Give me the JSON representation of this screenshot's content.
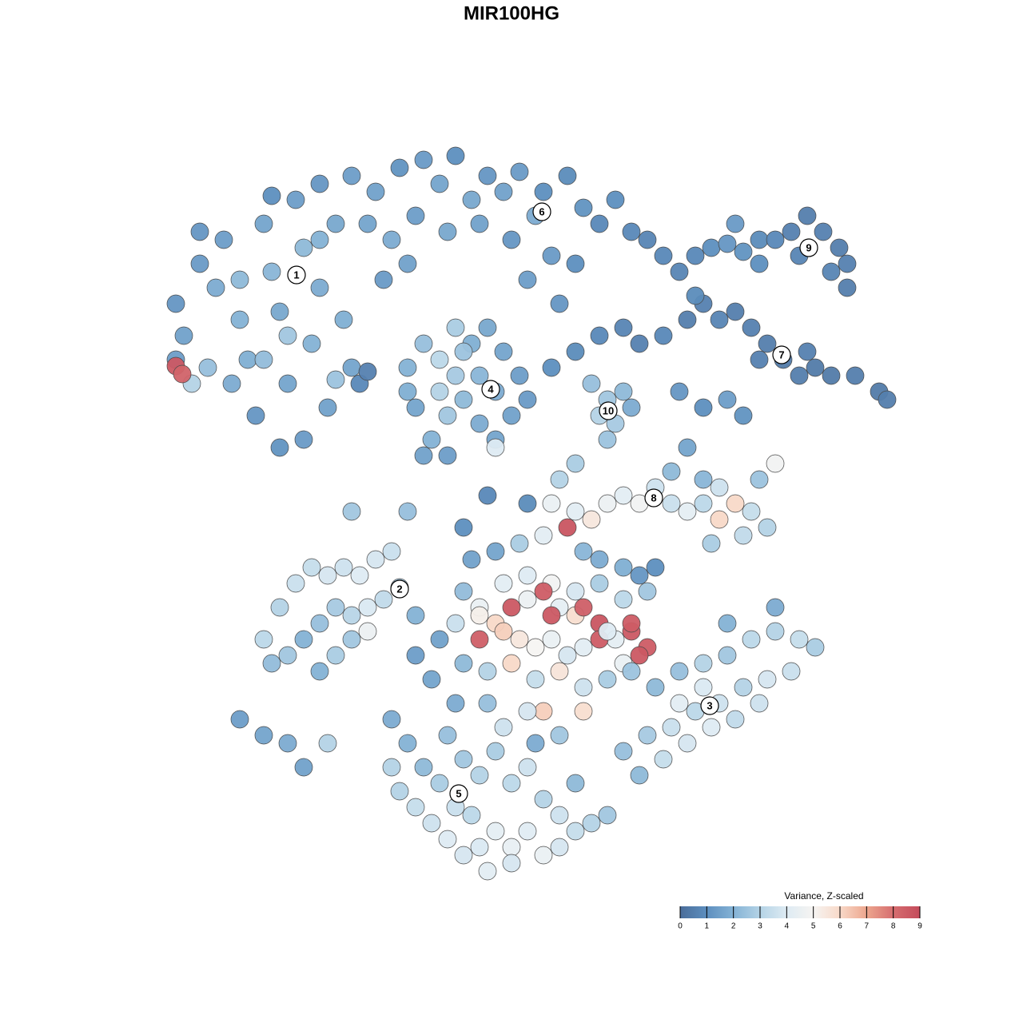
{
  "chart_data": {
    "type": "scatter",
    "title": "MIR100HG",
    "xlim": [
      0,
      128
    ],
    "ylim": [
      128,
      0
    ],
    "x": [
      22,
      23,
      25,
      27,
      28,
      30,
      31,
      33,
      34,
      35,
      36,
      37,
      38,
      39,
      40,
      41,
      42,
      43,
      44,
      32,
      35,
      38,
      29,
      26,
      33,
      22,
      25,
      36,
      40,
      30,
      24,
      22,
      22.8,
      34,
      40,
      44,
      47,
      50,
      53,
      55,
      57,
      59,
      61,
      63,
      65,
      67,
      68,
      71,
      73,
      75,
      77,
      79,
      81,
      83,
      85,
      46,
      49,
      52,
      56,
      60,
      64,
      69,
      72,
      48,
      51,
      66,
      70,
      87,
      89,
      91,
      93,
      95,
      97,
      99,
      101,
      103,
      105,
      106,
      106,
      104,
      92,
      95,
      100,
      69,
      72,
      75,
      78,
      80,
      83,
      86,
      88,
      90,
      92,
      94,
      96,
      98,
      100,
      102,
      104,
      107,
      110,
      111,
      101,
      87,
      95,
      85,
      88,
      91,
      93,
      51,
      53,
      55,
      57,
      59,
      61,
      63,
      65,
      66,
      64,
      62,
      60,
      58,
      56,
      54,
      52,
      51,
      55,
      57,
      60,
      62,
      58,
      53,
      56,
      62,
      74,
      76,
      78,
      75,
      77,
      76,
      79,
      69,
      72,
      74,
      76,
      78,
      80,
      82,
      84,
      86,
      88,
      90,
      92,
      94,
      96,
      90,
      93,
      89,
      95,
      97,
      84,
      86,
      88,
      59,
      62,
      65,
      68,
      71,
      73,
      75,
      78,
      80,
      82,
      58,
      60,
      63,
      66,
      69,
      72,
      75,
      78,
      81,
      57,
      60,
      62,
      64,
      66,
      68,
      70,
      72,
      73,
      75,
      77,
      79,
      81,
      78,
      60,
      63,
      65,
      67,
      69,
      71,
      73,
      75,
      76,
      58,
      61,
      64,
      67,
      70,
      73,
      68,
      73,
      66,
      57,
      61,
      63,
      70,
      54,
      55,
      52,
      76,
      80,
      79,
      69,
      33,
      35,
      37,
      39,
      41,
      43,
      45,
      47,
      49,
      50,
      48,
      46,
      44,
      42,
      40,
      38,
      36,
      34,
      40,
      42,
      44,
      52,
      46,
      30,
      33,
      36,
      38,
      41,
      79,
      82,
      85,
      88,
      91,
      94,
      97,
      100,
      102,
      99,
      96,
      93,
      90,
      87,
      84,
      81,
      78,
      80,
      83,
      86,
      89,
      92,
      95,
      91,
      97,
      88,
      85,
      49,
      51,
      53,
      56,
      58,
      60,
      62,
      64,
      66,
      68,
      70,
      72,
      74,
      76,
      50,
      52,
      54,
      56,
      58,
      60,
      62,
      64,
      66,
      68,
      70,
      61,
      64,
      57,
      59,
      49,
      55,
      67,
      72,
      44,
      51,
      58,
      61,
      66,
      70,
      72,
      45,
      46,
      42
    ],
    "y": [
      38,
      42,
      33,
      36,
      30,
      40,
      45,
      28,
      34,
      39,
      48,
      25,
      31,
      43,
      36,
      51,
      28,
      40,
      46,
      52,
      56,
      55,
      48,
      46,
      45,
      45,
      29,
      42,
      30,
      35,
      48,
      45.8,
      46.8,
      24.5,
      23,
      22,
      24,
      21,
      20,
      23,
      19.5,
      25,
      22,
      24,
      21.5,
      27,
      24,
      22,
      26,
      28,
      25,
      29,
      30,
      32,
      34,
      28,
      30,
      27,
      29,
      28,
      30,
      32,
      33,
      35,
      33,
      35,
      38,
      32,
      31,
      30.5,
      31.5,
      30,
      30,
      29,
      27,
      29,
      31,
      33,
      36,
      34,
      28,
      33,
      32,
      46,
      44,
      42,
      41,
      43,
      42,
      40,
      38,
      40,
      39,
      41,
      43,
      45,
      47,
      46,
      47,
      47,
      49,
      50,
      44,
      37,
      45,
      49,
      51,
      50,
      52,
      46,
      43,
      45,
      41,
      43,
      41,
      44,
      47,
      50,
      52,
      55,
      53,
      50,
      52,
      55,
      51,
      49,
      49,
      47,
      47,
      49,
      44,
      57,
      57,
      56,
      48,
      50,
      49,
      52,
      53,
      55,
      51,
      63,
      64,
      65,
      63,
      62,
      63,
      61,
      63,
      64,
      63,
      61,
      63,
      64,
      66,
      65,
      67,
      68,
      60,
      58,
      59,
      56,
      60,
      70,
      69,
      68,
      67,
      66,
      69,
      70,
      71,
      72,
      71,
      74,
      76,
      73,
      72,
      73,
      74,
      73,
      75,
      74,
      78,
      77,
      78,
      76,
      75,
      74,
      76,
      77,
      76,
      78,
      80,
      79,
      81,
      83,
      80,
      79,
      80,
      81,
      80,
      82,
      81,
      80,
      79,
      83,
      84,
      83,
      85,
      84,
      86,
      89,
      89,
      89,
      88,
      88,
      91,
      92,
      85,
      80,
      82,
      85,
      82,
      78,
      77,
      80,
      76,
      73,
      71,
      72,
      71,
      72,
      70,
      69,
      73.5,
      75,
      76,
      77,
      76,
      78,
      80,
      82,
      83,
      84,
      82,
      80,
      77,
      79,
      90,
      92,
      93,
      96,
      93,
      84,
      86,
      84,
      83,
      82,
      80,
      79,
      80,
      81,
      84,
      85,
      86,
      88,
      89,
      91,
      92,
      94,
      97,
      95,
      93,
      91,
      90,
      88,
      78,
      76,
      86,
      88,
      90,
      93,
      96,
      92,
      95,
      97,
      94,
      98,
      96,
      100,
      102,
      104,
      103,
      102,
      99,
      101,
      103,
      105,
      107,
      106,
      104,
      106,
      104,
      107,
      106,
      109,
      108,
      101,
      102,
      96,
      98,
      93,
      98,
      64,
      64,
      66,
      62,
      63,
      60,
      58,
      48,
      46.5,
      47.5
    ],
    "values": [
      1.2,
      1.5,
      1.3,
      1.8,
      1.4,
      2.0,
      1.9,
      1.6,
      2.1,
      1.7,
      1.6,
      1.4,
      2.2,
      2.0,
      1.8,
      1.5,
      1.7,
      1.9,
      1.6,
      1.2,
      1.1,
      1.3,
      1.8,
      2.4,
      2.3,
      1.4,
      1.2,
      2.6,
      2.0,
      2.2,
      3.0,
      8.6,
      8.3,
      1.0,
      1.2,
      1.4,
      1.5,
      1.1,
      1.3,
      1.6,
      1.0,
      1.7,
      1.2,
      1.5,
      1.3,
      1.8,
      1.0,
      0.9,
      1.1,
      0.8,
      1.0,
      0.8,
      0.7,
      0.8,
      0.7,
      1.6,
      1.8,
      1.4,
      1.7,
      1.5,
      1.2,
      1.3,
      1.0,
      1.3,
      1.5,
      1.4,
      1.2,
      0.8,
      1.0,
      1.2,
      1.1,
      0.9,
      0.8,
      0.6,
      0.5,
      0.6,
      0.5,
      0.6,
      0.5,
      0.7,
      1.3,
      1.0,
      0.7,
      1.0,
      0.9,
      0.8,
      0.7,
      0.6,
      0.8,
      0.5,
      0.6,
      0.7,
      0.5,
      0.6,
      0.5,
      0.4,
      0.5,
      0.4,
      0.4,
      0.5,
      0.4,
      0.5,
      0.6,
      0.9,
      0.6,
      1.2,
      1.0,
      1.4,
      1.1,
      2.0,
      2.4,
      3.2,
      2.8,
      1.9,
      1.7,
      1.6,
      1.4,
      1.3,
      1.5,
      1.6,
      1.8,
      2.2,
      2.6,
      2.0,
      1.6,
      1.9,
      3.0,
      2.7,
      2.1,
      1.8,
      2.5,
      1.5,
      1.4,
      4.0,
      2.4,
      2.6,
      2.2,
      3.0,
      2.7,
      2.5,
      1.8,
      4.5,
      4.2,
      5.5,
      4.6,
      4.2,
      4.8,
      3.6,
      3.5,
      4.3,
      3.2,
      3.6,
      6.0,
      3.4,
      3.0,
      6.0,
      3.3,
      2.8,
      2.5,
      4.8,
      2.2,
      1.6,
      2.1,
      1.5,
      1.6,
      2.8,
      4.2,
      8.7,
      2.1,
      1.8,
      1.9,
      1.2,
      1.0,
      2.3,
      4.5,
      4.2,
      4.0,
      4.8,
      3.8,
      2.8,
      3.2,
      2.6,
      3.5,
      5.2,
      6.0,
      8.6,
      4.6,
      8.5,
      4.3,
      5.8,
      8.4,
      8.7,
      4.3,
      8.6,
      8.5,
      4.5,
      8.4,
      6.2,
      5.5,
      5.0,
      4.5,
      3.8,
      4.2,
      8.5,
      4.0,
      2.2,
      3.0,
      6.0,
      3.4,
      5.6,
      3.6,
      6.2,
      5.8,
      3.8,
      1.8,
      2.4,
      3.6,
      2.6,
      1.6,
      1.5,
      1.4,
      2.8,
      8.6,
      8.5,
      8.6,
      3.2,
      3.0,
      3.5,
      3.4,
      3.8,
      3.6,
      4.0,
      3.8,
      3.5,
      2.6,
      3.3,
      3.9,
      3.1,
      2.7,
      2.4,
      2.0,
      2.6,
      2.3,
      2.0,
      2.8,
      2.6,
      2.0,
      4.6,
      1.4,
      1.6,
      1.8,
      1.5,
      3.0,
      2.5,
      2.2,
      2.4,
      3.0,
      2.6,
      3.2,
      3.0,
      3.4,
      2.8,
      3.5,
      3.8,
      3.0,
      3.6,
      3.2,
      3.5,
      2.7,
      2.4,
      2.2,
      3.4,
      3.8,
      4.0,
      3.3,
      3.6,
      2.0,
      1.8,
      3.9,
      4.2,
      1.8,
      2.0,
      2.2,
      2.4,
      2.6,
      3.0,
      2.8,
      3.2,
      3.6,
      3.0,
      3.6,
      3.4,
      3.0,
      2.6,
      3.0,
      3.4,
      3.6,
      4.0,
      3.8,
      3.9,
      4.3,
      4.4,
      4.1,
      4.5,
      3.8,
      4.2,
      3.8,
      3.5,
      3.2,
      3.0,
      2.8,
      1.8,
      2.2,
      2.6,
      2.4,
      1.0,
      0.8,
      0.9,
      3.0,
      2.8,
      0.8,
      0.6,
      2.5
    ],
    "cluster_labels": [
      {
        "text": "1",
        "x": 37.1,
        "y": 34.4
      },
      {
        "text": "2",
        "x": 50,
        "y": 73.7
      },
      {
        "text": "3",
        "x": 88.8,
        "y": 88.3
      },
      {
        "text": "4",
        "x": 61.4,
        "y": 48.7
      },
      {
        "text": "5",
        "x": 57.4,
        "y": 99.3
      },
      {
        "text": "6",
        "x": 67.8,
        "y": 26.5
      },
      {
        "text": "7",
        "x": 97.8,
        "y": 44.4
      },
      {
        "text": "8",
        "x": 81.8,
        "y": 62.3
      },
      {
        "text": "9",
        "x": 101.2,
        "y": 31
      },
      {
        "text": "10",
        "x": 76.1,
        "y": 51.4
      }
    ],
    "colorbar": {
      "title": "Variance, Z-scaled",
      "clim": [
        0,
        9
      ],
      "ticks": [
        0,
        1,
        2,
        3,
        4,
        5,
        6,
        7,
        8,
        9
      ],
      "colormap": [
        "#4a6d9a",
        "#5d8fbf",
        "#84b2d5",
        "#b4d3e6",
        "#deebf3",
        "#f6f4f2",
        "#f8d9c8",
        "#eda68e",
        "#d66d6f",
        "#c44b5b"
      ]
    }
  }
}
